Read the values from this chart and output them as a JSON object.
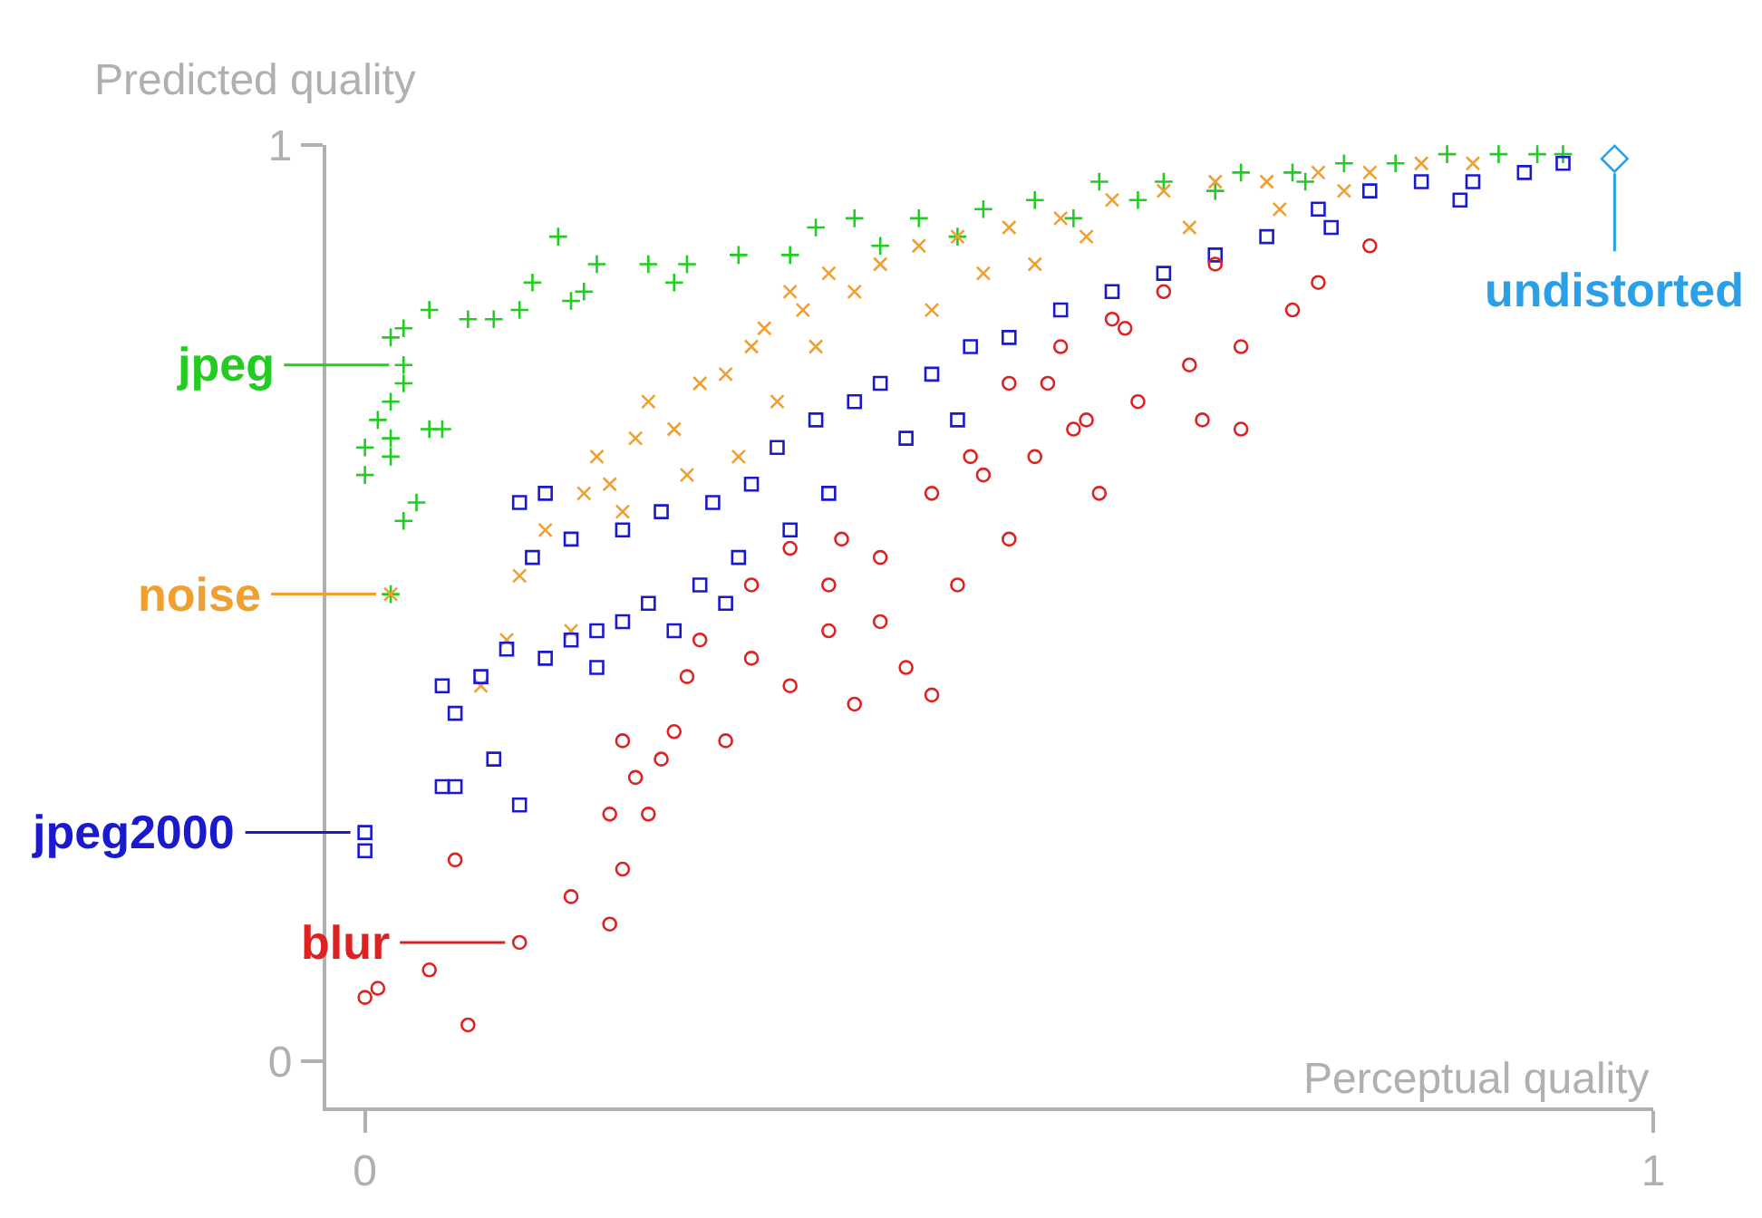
{
  "chart_data": {
    "type": "scatter",
    "xlabel": "Perceptual quality",
    "ylabel": "Predicted quality",
    "xlim": [
      -0.03,
      1.0
    ],
    "ylim": [
      -0.05,
      1.0
    ],
    "xticks": [
      0,
      1
    ],
    "yticks": [
      0,
      1
    ],
    "grid": false,
    "legend": "left",
    "series": [
      {
        "name": "jpeg",
        "color": "#22cc22",
        "marker": "cross",
        "x": [
          0.03,
          0.0,
          0.01,
          0.02,
          0.0,
          0.03,
          0.02,
          0.03,
          0.05,
          0.04,
          0.03,
          0.02,
          0.02,
          0.05,
          0.06,
          0.08,
          0.1,
          0.12,
          0.13,
          0.15,
          0.16,
          0.17,
          0.18,
          0.22,
          0.24,
          0.25,
          0.29,
          0.33,
          0.35,
          0.38,
          0.43,
          0.48,
          0.52,
          0.57,
          0.62,
          0.68,
          0.72,
          0.76,
          0.8,
          0.84,
          0.88,
          0.91,
          0.93,
          0.4,
          0.46,
          0.55,
          0.6,
          0.66,
          0.73,
          0.02
        ],
        "values": [
          0.76,
          0.64,
          0.7,
          0.72,
          0.67,
          0.74,
          0.79,
          0.8,
          0.82,
          0.61,
          0.59,
          0.66,
          0.68,
          0.69,
          0.69,
          0.81,
          0.81,
          0.82,
          0.85,
          0.9,
          0.83,
          0.84,
          0.87,
          0.87,
          0.85,
          0.87,
          0.88,
          0.88,
          0.91,
          0.92,
          0.92,
          0.93,
          0.94,
          0.96,
          0.96,
          0.97,
          0.97,
          0.98,
          0.98,
          0.99,
          0.99,
          0.99,
          0.99,
          0.89,
          0.9,
          0.92,
          0.94,
          0.95,
          0.96,
          0.51
        ]
      },
      {
        "name": "noise",
        "color": "#f0a030",
        "marker": "x",
        "x": [
          0.02,
          0.12,
          0.14,
          0.17,
          0.2,
          0.18,
          0.21,
          0.24,
          0.22,
          0.26,
          0.28,
          0.3,
          0.31,
          0.34,
          0.33,
          0.36,
          0.38,
          0.4,
          0.43,
          0.46,
          0.5,
          0.54,
          0.58,
          0.62,
          0.66,
          0.7,
          0.74,
          0.78,
          0.82,
          0.86,
          0.16,
          0.19,
          0.11,
          0.25,
          0.32,
          0.44,
          0.29,
          0.35,
          0.48,
          0.52,
          0.56,
          0.64,
          0.71,
          0.76,
          0.09
        ],
        "values": [
          0.51,
          0.53,
          0.58,
          0.62,
          0.6,
          0.66,
          0.68,
          0.69,
          0.72,
          0.74,
          0.75,
          0.78,
          0.8,
          0.82,
          0.84,
          0.86,
          0.84,
          0.87,
          0.89,
          0.9,
          0.91,
          0.92,
          0.94,
          0.95,
          0.96,
          0.96,
          0.97,
          0.97,
          0.98,
          0.98,
          0.47,
          0.63,
          0.46,
          0.64,
          0.72,
          0.82,
          0.66,
          0.78,
          0.86,
          0.87,
          0.9,
          0.91,
          0.93,
          0.95,
          0.41
        ]
      },
      {
        "name": "jpeg2000",
        "color": "#1a1acc",
        "marker": "square",
        "x": [
          0.0,
          0.0,
          0.06,
          0.07,
          0.07,
          0.06,
          0.1,
          0.12,
          0.09,
          0.11,
          0.14,
          0.16,
          0.18,
          0.18,
          0.2,
          0.22,
          0.24,
          0.26,
          0.28,
          0.13,
          0.16,
          0.2,
          0.23,
          0.27,
          0.3,
          0.32,
          0.35,
          0.38,
          0.4,
          0.44,
          0.47,
          0.5,
          0.54,
          0.58,
          0.62,
          0.66,
          0.7,
          0.74,
          0.78,
          0.82,
          0.86,
          0.9,
          0.93,
          0.85,
          0.75,
          0.36,
          0.42,
          0.46,
          0.29,
          0.33,
          0.12,
          0.14
        ],
        "values": [
          0.25,
          0.23,
          0.41,
          0.38,
          0.3,
          0.3,
          0.33,
          0.28,
          0.42,
          0.45,
          0.44,
          0.46,
          0.47,
          0.43,
          0.48,
          0.5,
          0.47,
          0.52,
          0.5,
          0.55,
          0.57,
          0.58,
          0.6,
          0.61,
          0.63,
          0.67,
          0.7,
          0.72,
          0.74,
          0.75,
          0.78,
          0.79,
          0.82,
          0.84,
          0.86,
          0.88,
          0.9,
          0.93,
          0.95,
          0.96,
          0.96,
          0.97,
          0.98,
          0.94,
          0.91,
          0.62,
          0.68,
          0.7,
          0.55,
          0.58,
          0.61,
          0.62
        ]
      },
      {
        "name": "blur",
        "color": "#dd2222",
        "marker": "circle",
        "x": [
          0.12,
          0.0,
          0.01,
          0.05,
          0.08,
          0.07,
          0.16,
          0.19,
          0.2,
          0.19,
          0.22,
          0.23,
          0.21,
          0.24,
          0.2,
          0.28,
          0.25,
          0.3,
          0.33,
          0.38,
          0.36,
          0.42,
          0.44,
          0.3,
          0.33,
          0.37,
          0.4,
          0.46,
          0.5,
          0.44,
          0.48,
          0.52,
          0.56,
          0.6,
          0.64,
          0.68,
          0.72,
          0.78,
          0.74,
          0.65,
          0.68,
          0.57,
          0.47,
          0.5,
          0.54,
          0.58,
          0.62,
          0.66,
          0.36,
          0.26,
          0.4,
          0.53,
          0.55,
          0.59
        ],
        "values": [
          0.13,
          0.07,
          0.08,
          0.1,
          0.04,
          0.22,
          0.18,
          0.15,
          0.21,
          0.27,
          0.27,
          0.33,
          0.31,
          0.36,
          0.35,
          0.35,
          0.42,
          0.44,
          0.41,
          0.39,
          0.47,
          0.43,
          0.4,
          0.52,
          0.56,
          0.57,
          0.55,
          0.52,
          0.57,
          0.62,
          0.64,
          0.66,
          0.7,
          0.72,
          0.76,
          0.78,
          0.82,
          0.89,
          0.85,
          0.7,
          0.69,
          0.62,
          0.66,
          0.74,
          0.78,
          0.81,
          0.84,
          0.87,
          0.52,
          0.46,
          0.48,
          0.74,
          0.69,
          0.8
        ]
      },
      {
        "name": "undistorted",
        "color": "#2aa0e8",
        "marker": "diamond",
        "x": [
          0.97
        ],
        "values": [
          0.985
        ]
      }
    ]
  }
}
